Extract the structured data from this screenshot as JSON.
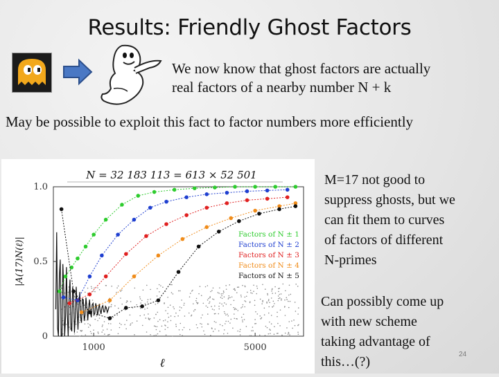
{
  "slide": {
    "title": "Results:  Friendly Ghost Factors",
    "intro_line1": "We now know that ghost factors are actually",
    "intro_line2": "real factors of a nearby number N + k",
    "note": "May be possible to exploit this fact to factor numbers more efficiently",
    "para1": [
      "M=17 not good to",
      "suppress ghosts, but we",
      "can fit them to curves",
      "of factors of different",
      "N-primes"
    ],
    "para2": [
      "Can possibly come up",
      "with new scheme",
      "taking advantage of",
      "this…(?)"
    ],
    "page_number": "24"
  },
  "chart_data": {
    "type": "scatter",
    "title": "N = 32 183 113 = 613 × 52 501",
    "xlabel": "ℓ",
    "ylabel": "|A(17)N(ℓ)|",
    "xlim": [
      0,
      6200
    ],
    "ylim": [
      0,
      1.0
    ],
    "xticks": [
      "1000",
      "5000"
    ],
    "yticks": [
      "0",
      "0.5",
      "1.0"
    ],
    "legend_position": "right",
    "legend": [
      {
        "label": "Factors of N ± 1",
        "color": "#2ecc2e"
      },
      {
        "label": "Factors of N ± 2",
        "color": "#1f3fd0"
      },
      {
        "label": "Factors of N ± 3",
        "color": "#e02020"
      },
      {
        "label": "Factors of N ± 4",
        "color": "#f08c1a"
      },
      {
        "label": "Factors of N ± 5",
        "color": "#111111"
      }
    ],
    "series": [
      {
        "name": "Factors of N ± 1",
        "color": "#2ecc2e",
        "x": [
          150,
          300,
          450,
          600,
          800,
          1000,
          1300,
          1700,
          2100,
          2500,
          3000,
          3500,
          4000,
          4500,
          5000,
          5500,
          6000
        ],
        "y": [
          0.3,
          0.4,
          0.46,
          0.52,
          0.6,
          0.68,
          0.78,
          0.88,
          0.94,
          0.965,
          0.98,
          0.99,
          0.995,
          1.0,
          1.0,
          1.0,
          1.0
        ]
      },
      {
        "name": "Factors of N ± 2",
        "color": "#1f3fd0",
        "x": [
          250,
          600,
          900,
          1200,
          1600,
          2000,
          2400,
          2800,
          3300,
          3800,
          4300,
          4800,
          5300,
          5800
        ],
        "y": [
          0.26,
          0.24,
          0.4,
          0.54,
          0.68,
          0.78,
          0.86,
          0.9,
          0.93,
          0.95,
          0.96,
          0.97,
          0.975,
          0.98
        ]
      },
      {
        "name": "Factors of N ± 3",
        "color": "#e02020",
        "x": [
          400,
          900,
          1300,
          1800,
          2300,
          2800,
          3300,
          3800,
          4300,
          4800,
          5300,
          5800
        ],
        "y": [
          0.22,
          0.28,
          0.4,
          0.55,
          0.67,
          0.75,
          0.81,
          0.86,
          0.89,
          0.91,
          0.92,
          0.93
        ]
      },
      {
        "name": "Factors of N ± 4",
        "color": "#f08c1a",
        "x": [
          700,
          1400,
          2000,
          2600,
          3200,
          3800,
          4400,
          5000,
          5600,
          6000
        ],
        "y": [
          0.16,
          0.24,
          0.4,
          0.54,
          0.65,
          0.73,
          0.79,
          0.84,
          0.87,
          0.89
        ]
      },
      {
        "name": "Factors of N ± 5",
        "color": "#111111",
        "x": [
          200,
          500,
          900,
          1400,
          1800,
          2200,
          2600,
          3100,
          3600,
          4100,
          4600,
          5100,
          5600,
          6000
        ],
        "y": [
          0.85,
          0.3,
          0.16,
          0.12,
          0.19,
          0.2,
          0.24,
          0.43,
          0.6,
          0.7,
          0.77,
          0.82,
          0.85,
          0.87
        ]
      }
    ],
    "noise": {
      "color": "#8a8a8a",
      "ymax": 0.35
    }
  }
}
